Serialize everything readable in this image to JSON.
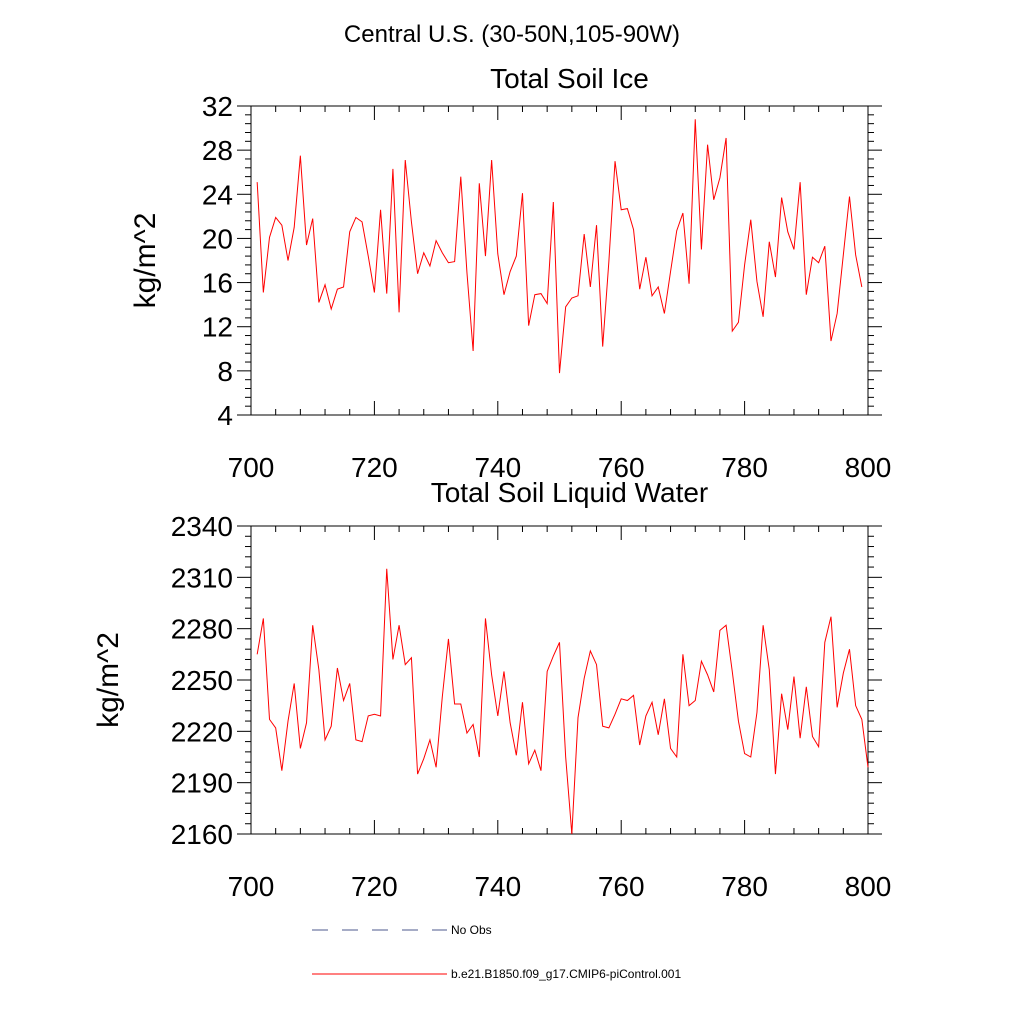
{
  "figure": {
    "suptitle": "Central U.S. (30-50N,105-90W)"
  },
  "colors": {
    "series": "#ff0000",
    "obs": "#4c5a8c",
    "axis": "#000000"
  },
  "chart_data": [
    {
      "type": "line",
      "title": "Total Soil Ice",
      "xlabel": "",
      "ylabel": "kg/m^2",
      "xlim": [
        700,
        800
      ],
      "ylim": [
        4,
        32
      ],
      "xticks": [
        700,
        720,
        740,
        760,
        780,
        800
      ],
      "yticks": [
        4,
        8,
        12,
        16,
        20,
        24,
        28,
        32
      ],
      "grid": false,
      "x_start": 701,
      "series": [
        {
          "name": "b.e21.B1850.f09_g17.CMIP6-piControl.001",
          "values": [
            25.1,
            15.1,
            20.1,
            21.9,
            21.2,
            18.0,
            21.0,
            27.5,
            19.4,
            21.8,
            14.2,
            15.8,
            13.6,
            15.4,
            15.6,
            20.6,
            21.9,
            21.5,
            18.4,
            15.1,
            22.6,
            15.0,
            26.3,
            13.3,
            27.1,
            21.5,
            16.8,
            18.7,
            17.5,
            19.8,
            18.7,
            17.8,
            17.9,
            25.6,
            16.9,
            9.8,
            25.0,
            18.4,
            27.1,
            18.6,
            14.9,
            17.0,
            18.4,
            24.1,
            12.1,
            14.9,
            15.0,
            14.1,
            23.3,
            7.8,
            13.8,
            14.6,
            14.8,
            20.4,
            15.6,
            21.2,
            10.2,
            17.9,
            27.0,
            22.6,
            22.7,
            20.8,
            15.4,
            18.3,
            14.8,
            15.6,
            13.2,
            17.0,
            20.7,
            22.3,
            15.9,
            30.8,
            19.0,
            28.5,
            23.5,
            25.5,
            29.1,
            11.6,
            12.4,
            17.6,
            21.7,
            16.1,
            12.9,
            19.7,
            16.5,
            23.7,
            20.6,
            19.0,
            25.1,
            14.9,
            18.3,
            17.8,
            19.3,
            10.7,
            13.2,
            18.5,
            23.8,
            18.5,
            15.6
          ]
        }
      ]
    },
    {
      "type": "line",
      "title": "Total Soil Liquid Water",
      "xlabel": "",
      "ylabel": "kg/m^2",
      "xlim": [
        700,
        800
      ],
      "ylim": [
        2160,
        2340
      ],
      "xticks": [
        700,
        720,
        740,
        760,
        780,
        800
      ],
      "yticks": [
        2160,
        2190,
        2220,
        2250,
        2280,
        2310,
        2340
      ],
      "grid": false,
      "x_start": 701,
      "series": [
        {
          "name": "b.e21.B1850.f09_g17.CMIP6-piControl.001",
          "values": [
            2265,
            2286,
            2227,
            2222,
            2197,
            2226,
            2248,
            2210,
            2225,
            2282,
            2256,
            2215,
            2223,
            2257,
            2238,
            2248,
            2215,
            2214,
            2229,
            2230,
            2229,
            2315,
            2262,
            2282,
            2259,
            2263,
            2195,
            2204,
            2215,
            2199,
            2240,
            2274,
            2236,
            2236,
            2219,
            2224,
            2205,
            2286,
            2253,
            2229,
            2255,
            2225,
            2206,
            2237,
            2201,
            2209,
            2197,
            2255,
            2264,
            2272,
            2205,
            2160,
            2228,
            2251,
            2267,
            2259,
            2223,
            2222,
            2230,
            2239,
            2238,
            2241,
            2212,
            2229,
            2237,
            2218,
            2239,
            2210,
            2205,
            2265,
            2235,
            2238,
            2261,
            2253,
            2243,
            2279,
            2282,
            2255,
            2226,
            2207,
            2205,
            2231,
            2282,
            2256,
            2195,
            2242,
            2221,
            2252,
            2216,
            2246,
            2217,
            2211,
            2272,
            2287,
            2234,
            2254,
            2268,
            2235,
            2227,
            2199
          ]
        }
      ]
    }
  ],
  "legend": {
    "placement": "bottom-left",
    "entries": [
      {
        "label": "No Obs",
        "style": "dashed"
      },
      {
        "label": "b.e21.B1850.f09_g17.CMIP6-piControl.001",
        "style": "solid"
      }
    ]
  }
}
